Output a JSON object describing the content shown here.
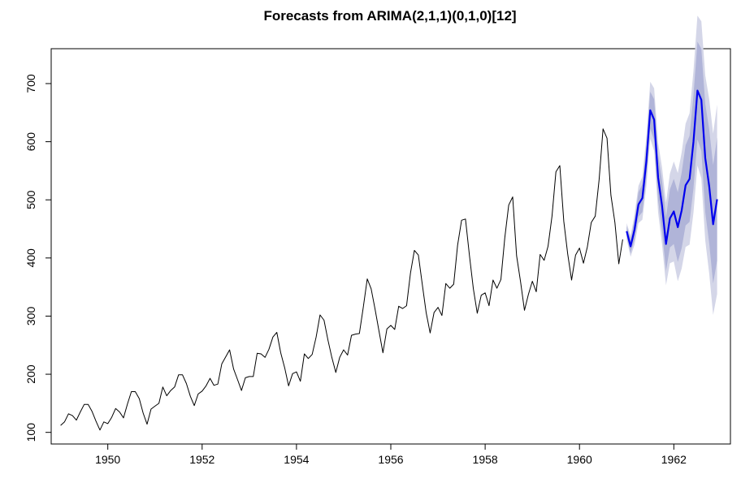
{
  "chart_data": {
    "type": "line",
    "title": "Forecasts from ARIMA(2,1,1)(0,1,0)[12]",
    "xlabel": "",
    "ylabel": "",
    "xlim": [
      1948.8,
      1963.2
    ],
    "ylim": [
      80,
      760
    ],
    "x_ticks": [
      1950,
      1952,
      1954,
      1956,
      1958,
      1960,
      1962
    ],
    "x_tick_labels": [
      "1950",
      "1952",
      "1954",
      "1956",
      "1958",
      "1960",
      "1962"
    ],
    "y_ticks": [
      100,
      200,
      300,
      400,
      500,
      600,
      700
    ],
    "y_tick_labels": [
      "100",
      "200",
      "300",
      "400",
      "500",
      "600",
      "700"
    ],
    "grid": false,
    "series": [
      {
        "start": 1949,
        "frequency": 12,
        "color": "#000000",
        "values": [
          112,
          118,
          132,
          129,
          121,
          135,
          148,
          148,
          136,
          119,
          104,
          118,
          115,
          126,
          141,
          135,
          125,
          149,
          170,
          170,
          158,
          133,
          114,
          140,
          145,
          150,
          178,
          163,
          172,
          178,
          199,
          199,
          184,
          162,
          146,
          166,
          171,
          180,
          193,
          181,
          183,
          218,
          230,
          242,
          209,
          191,
          172,
          194,
          196,
          196,
          236,
          235,
          229,
          243,
          264,
          272,
          237,
          211,
          180,
          201,
          204,
          188,
          235,
          227,
          234,
          264,
          302,
          293,
          259,
          229,
          203,
          229,
          242,
          233,
          267,
          269,
          270,
          315,
          364,
          347,
          312,
          274,
          237,
          278,
          284,
          277,
          317,
          313,
          318,
          374,
          413,
          405,
          355,
          306,
          271,
          306,
          315,
          301,
          356,
          348,
          355,
          422,
          465,
          467,
          404,
          347,
          305,
          336,
          340,
          318,
          362,
          348,
          363,
          435,
          491,
          505,
          404,
          359,
          310,
          337,
          360,
          342,
          406,
          396,
          420,
          472,
          548,
          559,
          463,
          407,
          362,
          405,
          417,
          391,
          419,
          461,
          472,
          535,
          622,
          606,
          508,
          461,
          390,
          432
        ]
      },
      {
        "start": 1961,
        "frequency": 12,
        "color": "#0000EE",
        "values": [
          446,
          420,
          449,
          492,
          503,
          566,
          654,
          638,
          538,
          490,
          424,
          468,
          480,
          453,
          482,
          525,
          536,
          600,
          688,
          672,
          572,
          523,
          458,
          501
        ],
        "intervals": {
          "inner_color": "#b0b4d8",
          "outer_color": "#d4d6e8",
          "lo80": [
            437,
            408,
            432,
            471,
            479,
            538,
            622,
            603,
            499,
            447,
            378,
            418,
            424,
            393,
            417,
            456,
            462,
            520,
            604,
            584,
            479,
            425,
            356,
            395
          ],
          "hi80": [
            455,
            432,
            466,
            513,
            527,
            594,
            686,
            673,
            577,
            533,
            470,
            518,
            536,
            513,
            547,
            594,
            610,
            680,
            772,
            760,
            665,
            621,
            560,
            607
          ],
          "lo95": [
            432,
            402,
            423,
            460,
            466,
            523,
            605,
            584,
            478,
            424,
            353,
            391,
            394,
            360,
            382,
            419,
            423,
            478,
            559,
            537,
            430,
            373,
            302,
            338
          ],
          "hi95": [
            460,
            438,
            475,
            524,
            540,
            609,
            703,
            692,
            598,
            556,
            495,
            545,
            566,
            546,
            582,
            631,
            649,
            722,
            817,
            807,
            714,
            673,
            614,
            664
          ]
        }
      }
    ]
  }
}
